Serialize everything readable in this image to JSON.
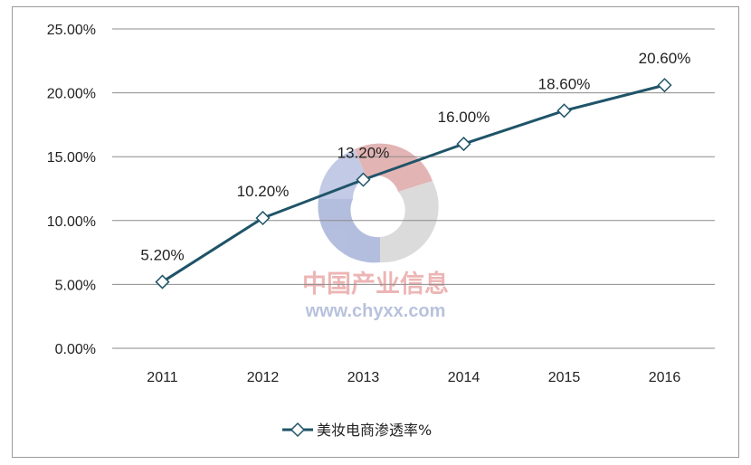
{
  "chart_data": {
    "type": "line",
    "categories": [
      "2011",
      "2012",
      "2013",
      "2014",
      "2015",
      "2016"
    ],
    "series": [
      {
        "name": "美妆电商渗透率%",
        "values": [
          5.2,
          10.2,
          13.2,
          16.0,
          18.6,
          20.6
        ],
        "data_labels": [
          "5.20%",
          "10.20%",
          "13.20%",
          "16.00%",
          "18.60%",
          "20.60%"
        ],
        "color": "#1f5468",
        "marker": "diamond"
      }
    ],
    "y_ticks": [
      "0.00%",
      "5.00%",
      "10.00%",
      "15.00%",
      "20.00%",
      "25.00%"
    ],
    "ylim": [
      0,
      25
    ],
    "grid": "horizontal",
    "legend_position": "bottom"
  },
  "watermark": {
    "text": "中国产业信息",
    "url": "www.chyxx.com"
  }
}
